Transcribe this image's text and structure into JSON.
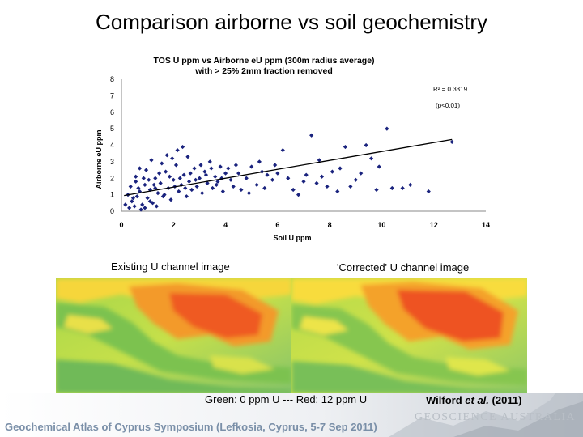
{
  "slide": {
    "title": "Comparison airborne vs soil geochemistry",
    "caption_left": "Existing U channel image",
    "caption_right": "'Corrected' U channel image",
    "legend_caption": "Green: 0 ppm U --- Red: 12 ppm U",
    "citation_author": "Wilford",
    "citation_etal": "et al.",
    "citation_year": "(2011)",
    "footer": "Geochemical Atlas of Cyprus Symposium (Lefkosia, Cyprus, 5-7 Sep 2011)",
    "logo": "GEOSCIENCE AUSTRALIA"
  },
  "chart_data": {
    "type": "scatter",
    "title_line1": "TOS U ppm  vs Airborne eU ppm  (300m radius average)",
    "title_line2": "with > 25% 2mm fraction removed",
    "xlabel": "Soil U  ppm",
    "ylabel": "Airborne eU ppm",
    "xlim": [
      0,
      14
    ],
    "ylim": [
      0,
      8
    ],
    "xticks": [
      "0",
      "2",
      "4",
      "6",
      "8",
      "10",
      "12",
      "14"
    ],
    "yticks": [
      "0",
      "1",
      "2",
      "3",
      "4",
      "5",
      "6",
      "7",
      "8"
    ],
    "r2_label": "R² = 0.3319",
    "p_label": "(p<0.01)",
    "marker_color": "#1a237e",
    "trendline": {
      "x": [
        0.1,
        12.7
      ],
      "y": [
        0.95,
        4.35
      ]
    },
    "points": [
      [
        0.3,
        0.2
      ],
      [
        0.4,
        0.6
      ],
      [
        0.5,
        0.3
      ],
      [
        0.6,
        0.9
      ],
      [
        0.7,
        1.2
      ],
      [
        0.8,
        0.4
      ],
      [
        0.9,
        1.6
      ],
      [
        1.0,
        0.8
      ],
      [
        1.1,
        1.3
      ],
      [
        1.2,
        0.5
      ],
      [
        1.3,
        2.0
      ],
      [
        1.4,
        1.1
      ],
      [
        1.5,
        1.7
      ],
      [
        1.6,
        0.9
      ],
      [
        1.7,
        2.4
      ],
      [
        1.8,
        1.4
      ],
      [
        1.9,
        0.7
      ],
      [
        2.0,
        1.9
      ],
      [
        2.1,
        2.8
      ],
      [
        2.2,
        1.2
      ],
      [
        2.3,
        1.6
      ],
      [
        2.4,
        2.2
      ],
      [
        2.5,
        0.9
      ],
      [
        2.6,
        1.8
      ],
      [
        2.7,
        1.3
      ],
      [
        2.8,
        2.6
      ],
      [
        2.9,
        1.5
      ],
      [
        3.0,
        2.0
      ],
      [
        3.1,
        1.1
      ],
      [
        3.2,
        2.4
      ],
      [
        3.3,
        1.7
      ],
      [
        3.4,
        3.0
      ],
      [
        3.5,
        1.4
      ],
      [
        3.6,
        2.1
      ],
      [
        3.7,
        1.8
      ],
      [
        3.8,
        2.7
      ],
      [
        3.9,
        1.2
      ],
      [
        4.0,
        2.3
      ],
      [
        4.2,
        1.9
      ],
      [
        4.4,
        2.8
      ],
      [
        0.35,
        1.5
      ],
      [
        0.55,
        2.1
      ],
      [
        0.75,
        0.1
      ],
      [
        0.95,
        2.5
      ],
      [
        1.15,
        3.1
      ],
      [
        1.35,
        0.3
      ],
      [
        1.55,
        2.9
      ],
      [
        1.75,
        3.4
      ],
      [
        1.95,
        3.2
      ],
      [
        2.15,
        3.7
      ],
      [
        2.35,
        3.9
      ],
      [
        2.55,
        3.3
      ],
      [
        1.05,
        1.9
      ],
      [
        1.25,
        1.6
      ],
      [
        1.45,
        2.3
      ],
      [
        1.65,
        1.0
      ],
      [
        1.85,
        2.1
      ],
      [
        2.05,
        1.5
      ],
      [
        2.25,
        2.0
      ],
      [
        2.45,
        1.4
      ],
      [
        2.65,
        2.3
      ],
      [
        2.85,
        1.9
      ],
      [
        3.05,
        2.8
      ],
      [
        3.25,
        2.2
      ],
      [
        3.45,
        2.6
      ],
      [
        3.65,
        1.6
      ],
      [
        3.85,
        2.0
      ],
      [
        4.1,
        2.6
      ],
      [
        4.3,
        1.5
      ],
      [
        4.5,
        2.3
      ],
      [
        0.45,
        0.8
      ],
      [
        0.65,
        1.4
      ],
      [
        0.85,
        2.0
      ],
      [
        0.25,
        1.0
      ],
      [
        0.15,
        0.4
      ],
      [
        0.55,
        1.8
      ],
      [
        0.7,
        2.6
      ],
      [
        0.9,
        0.2
      ],
      [
        1.1,
        0.6
      ],
      [
        1.3,
        1.4
      ],
      [
        4.6,
        1.3
      ],
      [
        4.8,
        2.0
      ],
      [
        5.0,
        2.7
      ],
      [
        5.2,
        1.6
      ],
      [
        5.4,
        2.4
      ],
      [
        5.6,
        2.2
      ],
      [
        5.8,
        1.9
      ],
      [
        5.9,
        2.8
      ],
      [
        6.2,
        3.7
      ],
      [
        6.6,
        1.3
      ],
      [
        6.8,
        1.0
      ],
      [
        7.1,
        2.2
      ],
      [
        7.3,
        4.6
      ],
      [
        7.5,
        1.7
      ],
      [
        7.6,
        3.1
      ],
      [
        7.9,
        1.5
      ],
      [
        8.1,
        2.4
      ],
      [
        8.4,
        2.6
      ],
      [
        8.6,
        3.9
      ],
      [
        8.8,
        1.5
      ],
      [
        9.2,
        2.3
      ],
      [
        9.4,
        4.0
      ],
      [
        9.6,
        3.2
      ],
      [
        9.8,
        1.3
      ],
      [
        10.2,
        5.0
      ],
      [
        10.4,
        1.4
      ],
      [
        10.8,
        1.4
      ],
      [
        11.1,
        1.6
      ],
      [
        11.8,
        1.2
      ],
      [
        12.7,
        4.2
      ],
      [
        5.5,
        1.4
      ],
      [
        6.0,
        2.3
      ],
      [
        6.4,
        2.0
      ],
      [
        7.0,
        1.8
      ],
      [
        7.7,
        2.1
      ],
      [
        8.3,
        1.2
      ],
      [
        9.0,
        1.9
      ],
      [
        9.9,
        2.7
      ],
      [
        4.9,
        1.1
      ],
      [
        5.3,
        3.0
      ]
    ]
  }
}
